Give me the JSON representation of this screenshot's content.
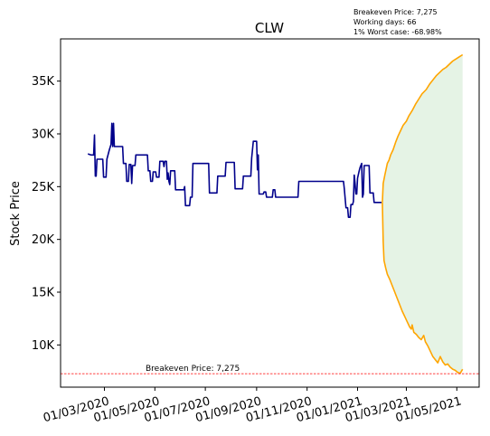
{
  "chart_data": {
    "type": "line",
    "title": "CLW",
    "ylabel": "Stock Price",
    "xlabel": "",
    "ylim": [
      6000,
      39000
    ],
    "xlim": [
      "2020-01-08",
      "2021-05-28"
    ],
    "x_ticks": [
      {
        "date": "2020-03-01",
        "label": "01/03/2020"
      },
      {
        "date": "2020-05-01",
        "label": "01/05/2020"
      },
      {
        "date": "2020-07-01",
        "label": "01/07/2020"
      },
      {
        "date": "2020-09-01",
        "label": "01/09/2020"
      },
      {
        "date": "2020-11-01",
        "label": "01/11/2020"
      },
      {
        "date": "2021-01-01",
        "label": "01/01/2021"
      },
      {
        "date": "2021-03-01",
        "label": "01/03/2021"
      },
      {
        "date": "2021-05-01",
        "label": "01/05/2021"
      }
    ],
    "y_ticks": [
      {
        "value": 10000,
        "label": "10K"
      },
      {
        "value": 15000,
        "label": "15K"
      },
      {
        "value": 20000,
        "label": "20K"
      },
      {
        "value": 25000,
        "label": "25K"
      },
      {
        "value": 30000,
        "label": "30K"
      },
      {
        "value": 35000,
        "label": "35K"
      }
    ],
    "grid": false,
    "annotations": {
      "breakeven": "Breakeven Price: 7,275",
      "working_days": "Working days: 66",
      "worst_case": "1% Worst case: -68.98%"
    },
    "breakeven_value": 7275,
    "breakeven_label": "Breakeven Price: 7,275",
    "series": [
      {
        "color": "#00008b",
        "points": [
          [
            "2020-02-10",
            28100
          ],
          [
            "2020-02-14",
            28000
          ],
          [
            "2020-02-17",
            28000
          ],
          [
            "2020-02-18",
            29900
          ],
          [
            "2020-02-19",
            26000
          ],
          [
            "2020-02-20",
            26000
          ],
          [
            "2020-02-21",
            27600
          ],
          [
            "2020-02-28",
            27600
          ],
          [
            "2020-02-29",
            25900
          ],
          [
            "2020-03-03",
            25900
          ],
          [
            "2020-03-04",
            27600
          ],
          [
            "2020-03-07",
            28500
          ],
          [
            "2020-03-09",
            29000
          ],
          [
            "2020-03-10",
            31000
          ],
          [
            "2020-03-11",
            28800
          ],
          [
            "2020-03-12",
            31000
          ],
          [
            "2020-03-13",
            28800
          ],
          [
            "2020-03-23",
            28800
          ],
          [
            "2020-03-24",
            27200
          ],
          [
            "2020-03-27",
            27200
          ],
          [
            "2020-03-28",
            25500
          ],
          [
            "2020-03-30",
            25500
          ],
          [
            "2020-03-31",
            27100
          ],
          [
            "2020-04-02",
            27100
          ],
          [
            "2020-04-03",
            25300
          ],
          [
            "2020-04-04",
            27000
          ],
          [
            "2020-04-07",
            27000
          ],
          [
            "2020-04-08",
            28000
          ],
          [
            "2020-04-22",
            28000
          ],
          [
            "2020-04-23",
            26500
          ],
          [
            "2020-04-25",
            26500
          ],
          [
            "2020-04-26",
            25500
          ],
          [
            "2020-04-28",
            25500
          ],
          [
            "2020-04-29",
            26400
          ],
          [
            "2020-05-02",
            26400
          ],
          [
            "2020-05-03",
            25900
          ],
          [
            "2020-05-06",
            25900
          ],
          [
            "2020-05-07",
            27400
          ],
          [
            "2020-05-11",
            27400
          ],
          [
            "2020-05-12",
            26900
          ],
          [
            "2020-05-13",
            27400
          ],
          [
            "2020-05-15",
            27400
          ],
          [
            "2020-05-16",
            25700
          ],
          [
            "2020-05-17",
            26300
          ],
          [
            "2020-05-18",
            25500
          ],
          [
            "2020-05-19",
            25200
          ],
          [
            "2020-05-20",
            26500
          ],
          [
            "2020-05-25",
            26500
          ],
          [
            "2020-05-26",
            24700
          ],
          [
            "2020-06-05",
            24700
          ],
          [
            "2020-06-06",
            25000
          ],
          [
            "2020-06-07",
            23200
          ],
          [
            "2020-06-12",
            23200
          ],
          [
            "2020-06-13",
            24000
          ],
          [
            "2020-06-15",
            24000
          ],
          [
            "2020-06-16",
            27200
          ],
          [
            "2020-07-05",
            27200
          ],
          [
            "2020-07-06",
            24400
          ],
          [
            "2020-07-15",
            24400
          ],
          [
            "2020-07-16",
            26000
          ],
          [
            "2020-07-25",
            26000
          ],
          [
            "2020-07-26",
            27300
          ],
          [
            "2020-08-05",
            27300
          ],
          [
            "2020-08-06",
            24800
          ],
          [
            "2020-08-15",
            24800
          ],
          [
            "2020-08-16",
            26000
          ],
          [
            "2020-08-25",
            26000
          ],
          [
            "2020-08-26",
            27700
          ],
          [
            "2020-08-28",
            29300
          ],
          [
            "2020-09-01",
            29300
          ],
          [
            "2020-09-02",
            26600
          ],
          [
            "2020-09-03",
            28000
          ],
          [
            "2020-09-04",
            24300
          ],
          [
            "2020-09-09",
            24300
          ],
          [
            "2020-09-10",
            24500
          ],
          [
            "2020-09-12",
            24500
          ],
          [
            "2020-09-13",
            24000
          ],
          [
            "2020-09-20",
            24000
          ],
          [
            "2020-09-21",
            24700
          ],
          [
            "2020-09-23",
            24700
          ],
          [
            "2020-09-24",
            24000
          ],
          [
            "2020-10-21",
            24000
          ],
          [
            "2020-10-22",
            25500
          ],
          [
            "2020-12-15",
            25500
          ],
          [
            "2020-12-16",
            24800
          ],
          [
            "2020-12-18",
            23000
          ],
          [
            "2020-12-20",
            23000
          ],
          [
            "2020-12-21",
            22100
          ],
          [
            "2020-12-23",
            22100
          ],
          [
            "2020-12-24",
            23300
          ],
          [
            "2020-12-26",
            23300
          ],
          [
            "2020-12-27",
            23600
          ],
          [
            "2020-12-28",
            26100
          ],
          [
            "2020-12-29",
            25300
          ],
          [
            "2020-12-30",
            24300
          ],
          [
            "2020-12-31",
            24300
          ],
          [
            "2021-01-01",
            25800
          ],
          [
            "2021-01-03",
            26500
          ],
          [
            "2021-01-04",
            26800
          ],
          [
            "2021-01-06",
            27200
          ],
          [
            "2021-01-07",
            24000
          ],
          [
            "2021-01-08",
            24300
          ],
          [
            "2021-01-09",
            27000
          ],
          [
            "2021-01-15",
            27000
          ],
          [
            "2021-01-16",
            24400
          ],
          [
            "2021-01-20",
            24400
          ],
          [
            "2021-01-21",
            23500
          ],
          [
            "2021-01-30",
            23500
          ]
        ]
      },
      {
        "color": "#ffa500",
        "points": [
          [
            "2021-01-31",
            23500
          ],
          [
            "2021-02-01",
            25300
          ],
          [
            "2021-02-03",
            26100
          ],
          [
            "2021-02-06",
            27200
          ],
          [
            "2021-02-08",
            27500
          ],
          [
            "2021-02-10",
            28000
          ],
          [
            "2021-02-13",
            28500
          ],
          [
            "2021-02-16",
            29200
          ],
          [
            "2021-02-19",
            29800
          ],
          [
            "2021-02-22",
            30300
          ],
          [
            "2021-02-25",
            30800
          ],
          [
            "2021-03-01",
            31200
          ],
          [
            "2021-03-04",
            31700
          ],
          [
            "2021-03-08",
            32200
          ],
          [
            "2021-03-12",
            32800
          ],
          [
            "2021-03-16",
            33300
          ],
          [
            "2021-03-20",
            33800
          ],
          [
            "2021-03-25",
            34200
          ],
          [
            "2021-03-29",
            34700
          ],
          [
            "2021-04-02",
            35100
          ],
          [
            "2021-04-06",
            35500
          ],
          [
            "2021-04-10",
            35800
          ],
          [
            "2021-04-14",
            36100
          ],
          [
            "2021-04-18",
            36300
          ],
          [
            "2021-04-22",
            36600
          ],
          [
            "2021-04-26",
            36900
          ],
          [
            "2021-04-30",
            37100
          ],
          [
            "2021-05-04",
            37300
          ],
          [
            "2021-05-08",
            37500
          ]
        ]
      },
      {
        "color": "#ffa500",
        "points": [
          [
            "2021-01-31",
            23500
          ],
          [
            "2021-02-01",
            19800
          ],
          [
            "2021-02-02",
            18000
          ],
          [
            "2021-02-04",
            17300
          ],
          [
            "2021-02-06",
            16700
          ],
          [
            "2021-02-09",
            16200
          ],
          [
            "2021-02-12",
            15600
          ],
          [
            "2021-02-15",
            15000
          ],
          [
            "2021-02-18",
            14400
          ],
          [
            "2021-02-21",
            13800
          ],
          [
            "2021-02-24",
            13200
          ],
          [
            "2021-02-27",
            12700
          ],
          [
            "2021-03-02",
            12200
          ],
          [
            "2021-03-05",
            11700
          ],
          [
            "2021-03-07",
            11500
          ],
          [
            "2021-03-08",
            11900
          ],
          [
            "2021-03-10",
            11200
          ],
          [
            "2021-03-13",
            11000
          ],
          [
            "2021-03-16",
            10700
          ],
          [
            "2021-03-19",
            10500
          ],
          [
            "2021-03-22",
            10900
          ],
          [
            "2021-03-24",
            10300
          ],
          [
            "2021-03-27",
            9900
          ],
          [
            "2021-03-30",
            9400
          ],
          [
            "2021-04-02",
            8900
          ],
          [
            "2021-04-05",
            8600
          ],
          [
            "2021-04-08",
            8300
          ],
          [
            "2021-04-11",
            8900
          ],
          [
            "2021-04-14",
            8400
          ],
          [
            "2021-04-17",
            8100
          ],
          [
            "2021-04-20",
            8200
          ],
          [
            "2021-04-23",
            7900
          ],
          [
            "2021-04-26",
            7700
          ],
          [
            "2021-04-29",
            7600
          ],
          [
            "2021-05-02",
            7400
          ],
          [
            "2021-05-05",
            7300
          ],
          [
            "2021-05-08",
            7700
          ]
        ]
      }
    ],
    "fill_between": {
      "color": "#2ca02c",
      "opacity": 0.12
    }
  }
}
